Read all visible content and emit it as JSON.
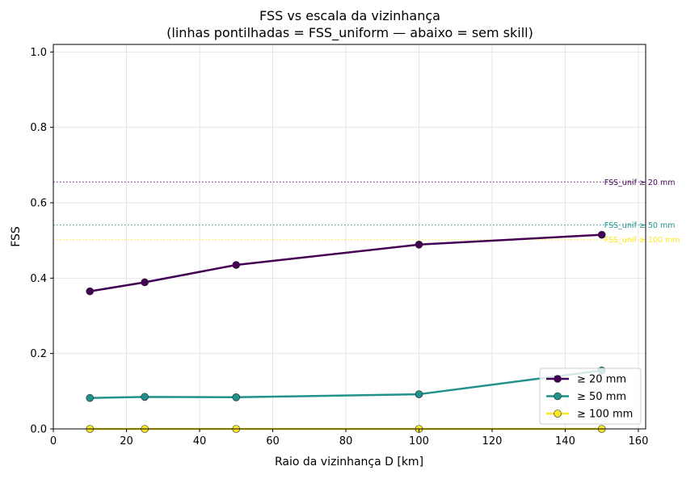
{
  "chart_data": {
    "type": "line",
    "title": "FSS vs escala da vizinhança",
    "subtitle": "(linhas pontilhadas = FSS_uniform — abaixo = sem skill)",
    "xlabel": "Raio da vizinhança D [km]",
    "ylabel": "FSS",
    "xlim": [
      0,
      162
    ],
    "ylim": [
      0,
      1.02
    ],
    "xticks": [
      0,
      20,
      40,
      60,
      80,
      100,
      120,
      140,
      160
    ],
    "yticks": [
      0.0,
      0.2,
      0.4,
      0.6,
      0.8,
      1.0
    ],
    "xtick_labels": [
      "0",
      "20",
      "40",
      "60",
      "80",
      "100",
      "120",
      "140",
      "160"
    ],
    "ytick_labels": [
      "0.0",
      "0.2",
      "0.4",
      "0.6",
      "0.8",
      "1.0"
    ],
    "grid": true,
    "legend_position": "bottom-right",
    "x": [
      10,
      25,
      50,
      100,
      150
    ],
    "series": [
      {
        "name": "≥ 20 mm",
        "color": "#440154",
        "values": [
          0.365,
          0.389,
          0.435,
          0.489,
          0.515
        ]
      },
      {
        "name": "≥ 50 mm",
        "color": "#21918c",
        "values": [
          0.082,
          0.085,
          0.084,
          0.092,
          0.155
        ]
      },
      {
        "name": "≥ 100 mm",
        "color": "#fde725",
        "values": [
          0.0,
          0.0,
          0.0,
          0.0,
          0.0
        ]
      }
    ],
    "reference_lines": [
      {
        "label": "FSS_unif ≥ 20 mm",
        "value": 0.655,
        "color": "#440154"
      },
      {
        "label": "FSS_unif ≥ 50 mm",
        "value": 0.541,
        "color": "#21918c"
      },
      {
        "label": "FSS_unif ≥ 100 mm",
        "value": 0.502,
        "color": "#fde725"
      }
    ]
  }
}
